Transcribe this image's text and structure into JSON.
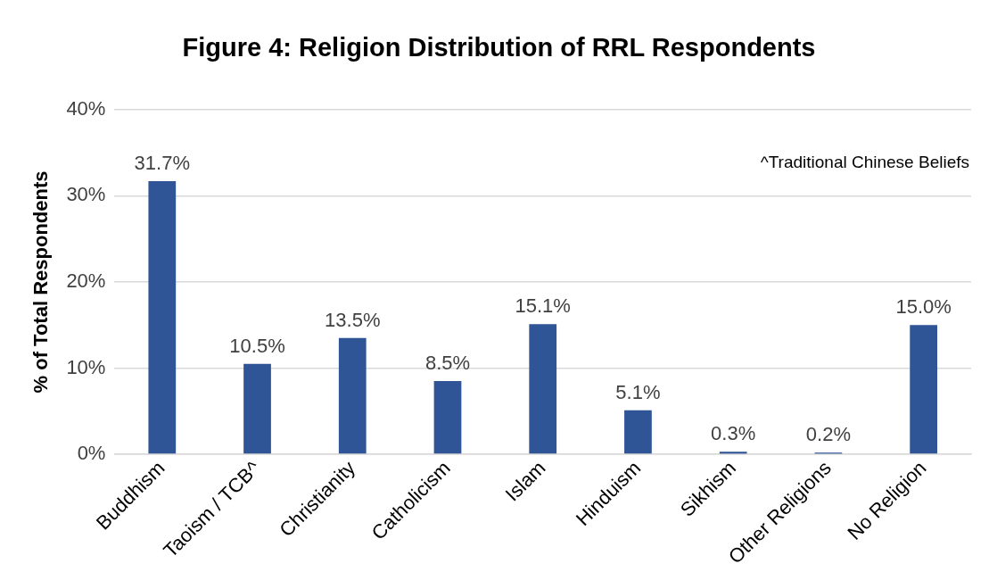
{
  "chart_data": {
    "type": "bar",
    "title": "Figure 4: Religion Distribution of RRL Respondents",
    "ylabel": "% of Total Respondents",
    "categories": [
      "Buddhism",
      "Taoism / TCB^",
      "Christianity",
      "Catholicism",
      "Islam",
      "Hinduism",
      "Sikhism",
      "Other Religions",
      "No Religion"
    ],
    "values": [
      31.7,
      10.5,
      13.5,
      8.5,
      15.1,
      5.1,
      0.3,
      0.2,
      15.0
    ],
    "value_labels": [
      "31.7%",
      "10.5%",
      "13.5%",
      "8.5%",
      "15.1%",
      "5.1%",
      "0.3%",
      "0.2%",
      "15.0%"
    ],
    "color": "#2f5597",
    "ylim": [
      0,
      40
    ],
    "yticks": [
      {
        "value": 0,
        "label": "0%"
      },
      {
        "value": 10,
        "label": "10%"
      },
      {
        "value": 20,
        "label": "20%"
      },
      {
        "value": 30,
        "label": "30%"
      },
      {
        "value": 40,
        "label": "40%"
      }
    ],
    "grid": "y",
    "annotations": [
      "^Traditional Chinese Beliefs"
    ]
  }
}
